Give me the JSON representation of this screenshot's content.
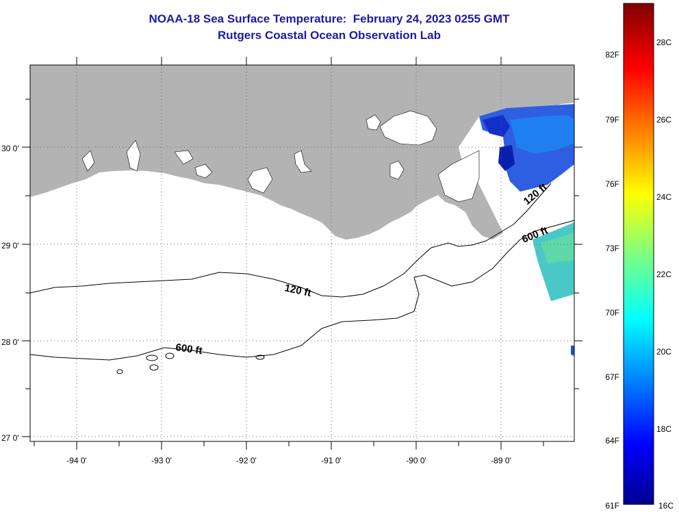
{
  "title": {
    "line1": "NOAA-18 Sea Surface Temperature:  February 24, 2023 0255 GMT",
    "line2": "Rutgers Coastal Ocean Observation Lab"
  },
  "map": {
    "lon_ticks": [
      {
        "value": -94,
        "label": "-94 0'"
      },
      {
        "value": -93,
        "label": "-93 0'"
      },
      {
        "value": -92,
        "label": "-92 0'"
      },
      {
        "value": -91,
        "label": "-91 0'"
      },
      {
        "value": -90,
        "label": "-90 0'"
      },
      {
        "value": -89,
        "label": "-89 0'"
      }
    ],
    "lat_ticks": [
      {
        "value": 30,
        "label": "30 0'"
      },
      {
        "value": 29,
        "label": "29 0'"
      },
      {
        "value": 28,
        "label": "28 0'"
      },
      {
        "value": 27,
        "label": "27 0'"
      }
    ],
    "lon_range": [
      -94.5,
      -88.2
    ],
    "lat_range": [
      26.9,
      30.85
    ],
    "contours": [
      {
        "label": "120 ft"
      },
      {
        "label": "600 ft"
      },
      {
        "label": "120 ft"
      },
      {
        "label": "600 ft"
      }
    ],
    "land_color": "#b3b3b3",
    "grid": true
  },
  "colorbar": {
    "fahrenheit_labels": [
      "82F",
      "79F",
      "76F",
      "73F",
      "70F",
      "67F",
      "64F",
      "61F"
    ],
    "celsius_labels": [
      "28C",
      "26C",
      "24C",
      "22C",
      "20C",
      "18C",
      "16C"
    ],
    "range_c": [
      16,
      29
    ]
  }
}
